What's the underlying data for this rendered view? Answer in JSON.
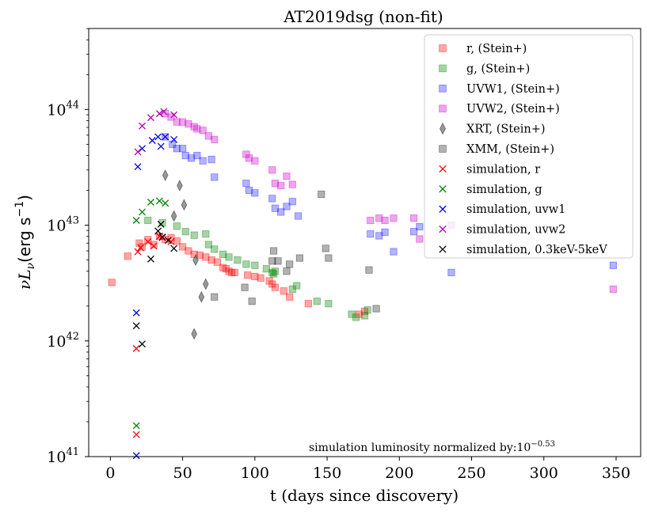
{
  "chart_data": {
    "type": "scatter",
    "title": "AT2019dsg (non-fit)",
    "xlabel": "t (days since discovery)",
    "ylabel": {
      "main": "νL",
      "sub": "ν",
      "unit_prefix": "(erg s",
      "unit_sup": "−1",
      "unit_suffix": ")"
    },
    "xlim": [
      -15,
      367
    ],
    "ylog_lim": [
      41,
      44.7
    ],
    "x_ticks": [
      0,
      50,
      100,
      150,
      200,
      250,
      300,
      350
    ],
    "x_tick_labels": [
      "0",
      "50",
      "100",
      "150",
      "200",
      "250",
      "300",
      "350"
    ],
    "y_ticks": [
      {
        "exp": 41,
        "base": "10",
        "sup": "41"
      },
      {
        "exp": 42,
        "base": "10",
        "sup": "42"
      },
      {
        "exp": 43,
        "base": "10",
        "sup": "43"
      },
      {
        "exp": 44,
        "base": "10",
        "sup": "44"
      }
    ],
    "annotation": {
      "text": "simulation luminosity normalized by:10",
      "sup": "−0.53"
    },
    "legend_position": "top-right",
    "series": [
      {
        "name": "r, (Stein+)",
        "marker": "square",
        "color": "#ff0000",
        "alpha": 0.35,
        "points": [
          [
            1,
            3.2e+42
          ],
          [
            12,
            5.4e+42
          ],
          [
            20,
            7e+42
          ],
          [
            22,
            6.5e+42
          ],
          [
            26,
            7.5e+42
          ],
          [
            30,
            6.8e+42
          ],
          [
            34,
            8e+42
          ],
          [
            38,
            7.5e+42
          ],
          [
            42,
            7.8e+42
          ],
          [
            46,
            7.3e+42
          ],
          [
            50,
            6.5e+42
          ],
          [
            54,
            6e+42
          ],
          [
            58,
            5.6e+42
          ],
          [
            62,
            5.5e+42
          ],
          [
            66,
            5.3e+42
          ],
          [
            70,
            5e+42
          ],
          [
            74,
            4.8e+42
          ],
          [
            78,
            4.3e+42
          ],
          [
            80,
            4.2e+42
          ],
          [
            82,
            4e+42
          ],
          [
            84,
            3.9e+42
          ],
          [
            86,
            3.9e+42
          ],
          [
            95,
            3.7e+42
          ],
          [
            100,
            3.6e+42
          ],
          [
            104,
            3.5e+42
          ],
          [
            110,
            3.3e+42
          ],
          [
            112,
            3.1e+42
          ],
          [
            114,
            2.9e+42
          ],
          [
            120,
            2.7e+42
          ],
          [
            124,
            2.4e+42
          ],
          [
            137,
            2.1e+42
          ],
          [
            172,
            1.7e+42
          ],
          [
            176,
            1.8e+42
          ]
        ]
      },
      {
        "name": "g, (Stein+)",
        "marker": "square",
        "color": "#008000",
        "alpha": 0.35,
        "points": [
          [
            26,
            1.1e+43
          ],
          [
            36,
            1.05e+43
          ],
          [
            46,
            9.8e+42
          ],
          [
            52,
            8.8e+42
          ],
          [
            58,
            8.2e+42
          ],
          [
            66,
            8.4e+42
          ],
          [
            68,
            6.8e+42
          ],
          [
            72,
            6.2e+42
          ],
          [
            78,
            5.6e+42
          ],
          [
            82,
            5.3e+42
          ],
          [
            88,
            5e+42
          ],
          [
            94,
            4.6e+42
          ],
          [
            100,
            4.5e+42
          ],
          [
            108,
            4.2e+42
          ],
          [
            112,
            3.9e+42
          ],
          [
            113,
            3.8e+42
          ],
          [
            114,
            4e+42
          ],
          [
            126,
            2.8e+42
          ],
          [
            129,
            3e+42
          ],
          [
            143,
            2.2e+42
          ],
          [
            151,
            2.1e+42
          ],
          [
            167,
            1.7e+42
          ],
          [
            170,
            1.6e+42
          ],
          [
            176,
            1.65e+42
          ],
          [
            178,
            1.85e+42
          ]
        ]
      },
      {
        "name": "UVW1, (Stein+)",
        "marker": "square",
        "color": "#0000ff",
        "alpha": 0.3,
        "points": [
          [
            38,
            5.8e+43
          ],
          [
            43,
            5e+43
          ],
          [
            46,
            4.6e+43
          ],
          [
            50,
            4.6e+43
          ],
          [
            52,
            4e+43
          ],
          [
            56,
            3.8e+43
          ],
          [
            60,
            4e+43
          ],
          [
            64,
            3.6e+43
          ],
          [
            70,
            3.7e+43
          ],
          [
            72,
            2.6e+43
          ],
          [
            94,
            2.3e+43
          ],
          [
            96,
            2e+43
          ],
          [
            100,
            1.9e+43
          ],
          [
            112,
            1.7e+43
          ],
          [
            114,
            1.4e+43
          ],
          [
            118,
            1.3e+43
          ],
          [
            122,
            1.45e+43
          ],
          [
            126,
            1.6e+43
          ],
          [
            130,
            1.2e+43
          ],
          [
            180,
            8.4e+42
          ],
          [
            186,
            8.1e+42
          ],
          [
            190,
            8.7e+42
          ],
          [
            196,
            5.9e+42
          ],
          [
            210,
            8.8e+42
          ],
          [
            214,
            9.7e+42
          ],
          [
            236,
            3.9e+42
          ],
          [
            348,
            4.5e+42
          ]
        ]
      },
      {
        "name": "UVW2, (Stein+)",
        "marker": "square",
        "color": "#cc00cc",
        "alpha": 0.35,
        "points": [
          [
            38,
            9.2e+43
          ],
          [
            42,
            8.6e+43
          ],
          [
            46,
            7.8e+43
          ],
          [
            50,
            7.8e+43
          ],
          [
            54,
            7.5e+43
          ],
          [
            58,
            7.1e+43
          ],
          [
            60,
            6.8e+43
          ],
          [
            64,
            6.6e+43
          ],
          [
            68,
            5.9e+43
          ],
          [
            72,
            5.5e+43
          ],
          [
            94,
            4.1e+43
          ],
          [
            96,
            3.8e+43
          ],
          [
            100,
            3.6e+43
          ],
          [
            112,
            3e+43
          ],
          [
            114,
            2.3e+43
          ],
          [
            118,
            2.2e+43
          ],
          [
            122,
            2.65e+43
          ],
          [
            126,
            2.25e+43
          ],
          [
            180,
            1.1e+43
          ],
          [
            186,
            1.15e+43
          ],
          [
            190,
            1.1e+43
          ],
          [
            196,
            1.15e+43
          ],
          [
            210,
            1.15e+43
          ],
          [
            214,
            7.6e+42
          ],
          [
            236,
            1e+43
          ],
          [
            348,
            2.8e+42
          ]
        ]
      },
      {
        "name": "XRT, (Stein+)",
        "marker": "thin_diamond",
        "color": "#555555",
        "alpha": 0.6,
        "points": [
          [
            38,
            2.7e+43
          ],
          [
            44,
            1.2e+43
          ],
          [
            48,
            2.2e+43
          ],
          [
            51,
            1.5e+43
          ],
          [
            59,
            5e+42
          ],
          [
            63,
            2.4e+42
          ],
          [
            66,
            3.1e+42
          ],
          [
            58,
            1.15e+42
          ]
        ]
      },
      {
        "name": "XMM, (Stein+)",
        "marker": "square",
        "color": "#000000",
        "alpha": 0.3,
        "points": [
          [
            72,
            2.4e+42
          ],
          [
            93,
            2.9e+42
          ],
          [
            98,
            2.2e+42
          ],
          [
            112,
            4.9e+42
          ],
          [
            113,
            6e+42
          ],
          [
            116,
            4.9e+42
          ],
          [
            122,
            4e+42
          ],
          [
            124,
            4.6e+42
          ],
          [
            131,
            5.2e+42
          ],
          [
            146,
            1.85e+43
          ],
          [
            149,
            6.3e+42
          ],
          [
            151,
            5.2e+42
          ],
          [
            179,
            4.1e+42
          ],
          [
            184,
            1.9e+42
          ]
        ]
      },
      {
        "name": "simulation, r",
        "marker": "x",
        "color": "#ff0000",
        "alpha": 1,
        "points": [
          [
            18,
            1.55e+41
          ],
          [
            18,
            8.6e+41
          ],
          [
            19,
            5.9e+42
          ],
          [
            21,
            6.4e+42
          ],
          [
            26,
            7.2e+42
          ],
          [
            30,
            6.6e+42
          ],
          [
            34,
            8e+42
          ],
          [
            36,
            7.8e+42
          ],
          [
            42,
            7.2e+42
          ]
        ]
      },
      {
        "name": "simulation, g",
        "marker": "x",
        "color": "#008000",
        "alpha": 1,
        "points": [
          [
            18,
            1.85e+41
          ],
          [
            18,
            1.1e+43
          ],
          [
            22,
            1.3e+43
          ],
          [
            28,
            1.58e+43
          ],
          [
            34,
            1.62e+43
          ],
          [
            38,
            1.55e+43
          ]
        ]
      },
      {
        "name": "simulation, uvw1",
        "marker": "x",
        "color": "#0000ff",
        "alpha": 1,
        "points": [
          [
            18,
            1.02e+41
          ],
          [
            18,
            1.75e+42
          ],
          [
            19,
            3.2e+43
          ],
          [
            22,
            4.6e+43
          ],
          [
            29,
            5.4e+43
          ],
          [
            33,
            5.8e+43
          ],
          [
            35,
            4.8e+43
          ],
          [
            38,
            5.8e+43
          ],
          [
            44,
            5.5e+43
          ]
        ]
      },
      {
        "name": "simulation, uvw2",
        "marker": "x",
        "color": "#aa00aa",
        "alpha": 1,
        "points": [
          [
            19,
            4.3e+43
          ],
          [
            22,
            7.2e+43
          ],
          [
            28,
            8.5e+43
          ],
          [
            34,
            9.2e+43
          ],
          [
            37,
            9.6e+43
          ],
          [
            44,
            9e+43
          ]
        ]
      },
      {
        "name": "simulation, 0.3keV-5keV",
        "marker": "x",
        "color": "#000000",
        "alpha": 1,
        "points": [
          [
            18,
            1.35e+42
          ],
          [
            22,
            9.4e+41
          ],
          [
            28,
            5.1e+42
          ],
          [
            33,
            8.9e+42
          ],
          [
            35,
            1.02e+43
          ],
          [
            40,
            7.4e+42
          ],
          [
            44,
            6.3e+42
          ],
          [
            36,
            7.9e+42
          ]
        ]
      }
    ]
  }
}
